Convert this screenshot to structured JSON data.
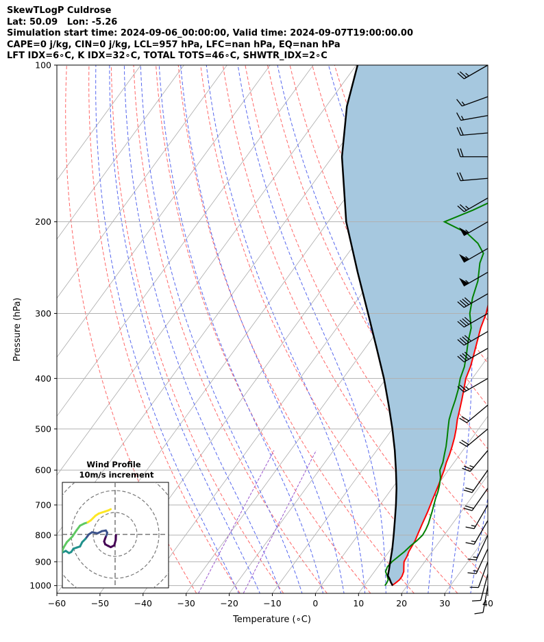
{
  "titles": {
    "line1": "SkewTLogP Culdrose",
    "line2": "Lat: 50.09   Lon: -5.26",
    "line3": "Simulation start time: 2024-09-06_00:00:00, Valid time: 2024-09-07T19:00:00.00",
    "line4": "CAPE=0 j/kg, CIN=0 j/kg, LCL=957 hPa, LFC=nan hPa, EQ=nan hPa",
    "line5": "LFT IDX=6∘C, K IDX=32∘C, TOTAL TOTS=46∘C, SHWTR_IDX=2∘C"
  },
  "chart_data": {
    "type": "line",
    "chart": "skew-t log-p",
    "xlabel": "Temperature (∘C)",
    "ylabel": "Pressure (hPa)",
    "xlim": [
      -60,
      40
    ],
    "ylim": [
      1035,
      100
    ],
    "x_ticks": [
      -60,
      -50,
      -40,
      -30,
      -20,
      -10,
      0,
      10,
      20,
      30,
      40
    ],
    "y_ticks": [
      100,
      200,
      300,
      400,
      500,
      600,
      700,
      800,
      900,
      1000
    ],
    "grid": true,
    "colors": {
      "temperature": "#ff0000",
      "dewpoint": "#008000",
      "parcel": "#000000",
      "shading": "#a6c8df",
      "dry_adiabats": "#ff6666",
      "moist_adiabats": "#5566ee",
      "mixing_ratio": "#9955cc",
      "isotherms": "#aaaaaa"
    },
    "temperature": {
      "pressure": [
        1000,
        990,
        975,
        960,
        940,
        920,
        900,
        880,
        860,
        840,
        820,
        800,
        780,
        760,
        740,
        720,
        700,
        680,
        660,
        640,
        620,
        600,
        580,
        560,
        540,
        520,
        500,
        480,
        460,
        440,
        420,
        400,
        380,
        360,
        340,
        320,
        300,
        280,
        260,
        250,
        240,
        230,
        220,
        200,
        190,
        180,
        170,
        160,
        150,
        140,
        130,
        125,
        120,
        115,
        110,
        100
      ],
      "values": [
        16.4,
        16.8,
        17.2,
        17.2,
        16.8,
        16.0,
        15.2,
        15.0,
        14.6,
        14.4,
        14.2,
        13.8,
        13.4,
        13.0,
        12.6,
        12.2,
        11.7,
        11.2,
        10.7,
        10.2,
        9.6,
        9.0,
        8.2,
        7.6,
        6.8,
        5.9,
        4.8,
        3.5,
        2.4,
        1.2,
        -0.1,
        -1.5,
        -2.4,
        -3.7,
        -5.1,
        -6.6,
        -7.8,
        -9.6,
        -11.6,
        -10.0,
        -5.8,
        -3.0,
        -1.0,
        -2.2,
        -1.8,
        -1.2,
        -0.6,
        -0.4,
        -0.8,
        -0.8,
        -0.6,
        0.4,
        1.6,
        2.2,
        2.8,
        4.2
      ]
    },
    "dewpoint": {
      "pressure": [
        1000,
        990,
        975,
        960,
        940,
        920,
        900,
        880,
        860,
        840,
        820,
        800,
        780,
        760,
        740,
        720,
        700,
        680,
        660,
        640,
        620,
        600,
        580,
        560,
        540,
        520,
        500,
        480,
        460,
        440,
        420,
        400,
        380,
        360,
        340,
        320,
        300,
        280,
        260,
        240,
        230,
        220,
        210,
        200,
        190,
        180,
        170,
        160,
        150,
        140,
        130,
        120,
        110,
        100
      ],
      "values": [
        14.8,
        14.8,
        14.6,
        13.8,
        12.6,
        12.2,
        12.4,
        13.0,
        13.6,
        14.0,
        14.6,
        15.0,
        14.8,
        14.4,
        13.8,
        13.2,
        12.5,
        11.8,
        11.2,
        10.4,
        9.4,
        8.0,
        7.4,
        6.4,
        5.4,
        4.2,
        2.9,
        1.6,
        0.6,
        -0.3,
        -1.4,
        -2.8,
        -3.8,
        -5.4,
        -7.2,
        -8.8,
        -11.6,
        -13.6,
        -15.2,
        -17.8,
        -18.6,
        -21.6,
        -26.0,
        -33.0,
        -28.4,
        -24.4,
        -22.0,
        -20.4,
        -18.2,
        -15.2,
        -12.2,
        -9.0,
        -6.6,
        -4.0
      ]
    },
    "parcel": {
      "pressure": [
        1000,
        985,
        970,
        957,
        930,
        900,
        850,
        800,
        750,
        700,
        650,
        600,
        550,
        500,
        450,
        400,
        350,
        300,
        250,
        200,
        150,
        120,
        100
      ],
      "values": [
        16.6,
        15.6,
        14.7,
        13.8,
        13.0,
        12.0,
        10.3,
        8.3,
        6.1,
        3.7,
        1.0,
        -2.2,
        -5.8,
        -10.0,
        -14.9,
        -20.5,
        -27.3,
        -35.2,
        -44.6,
        -55.8,
        -67.8,
        -75.2,
        -79.7
      ]
    },
    "wind_barbs": {
      "pressure": [
        100,
        115,
        125,
        135,
        150,
        165,
        180,
        200,
        225,
        250,
        275,
        300,
        325,
        350,
        400,
        450,
        500,
        550,
        600,
        650,
        700,
        750,
        800,
        850,
        900,
        950,
        1000
      ],
      "speed_kt": [
        25,
        15,
        15,
        20,
        20,
        20,
        25,
        55,
        55,
        55,
        40,
        40,
        40,
        40,
        25,
        20,
        20,
        25,
        20,
        20,
        15,
        15,
        15,
        15,
        10,
        10,
        10
      ],
      "direction_deg": [
        240,
        250,
        260,
        265,
        270,
        265,
        240,
        240,
        240,
        240,
        240,
        240,
        240,
        240,
        240,
        230,
        230,
        220,
        215,
        215,
        210,
        210,
        205,
        205,
        200,
        195,
        190
      ]
    },
    "hodograph": {
      "title": "Wind Profile",
      "subtitle": "10m/s increment",
      "ring_interval_ms": 10,
      "u": [
        0.4,
        0.3,
        -0.4,
        -2.0,
        -3.2,
        -4.5,
        -5.0,
        -4.6,
        -4.0,
        -3.6,
        -4.2,
        -6.0,
        -8.0,
        -10.5,
        -12.0,
        -13.5,
        -15.0,
        -16.0,
        -17.5,
        -19.0,
        -20.0,
        -21.0,
        -22.5,
        -24.5,
        -23.5,
        -22.0,
        -19.5,
        -17.5,
        -16.0,
        -14.0,
        -12.5,
        -11.0,
        -10.0,
        -9.0,
        -7.5,
        -6.0,
        -4.5,
        -3.0,
        -2.0
      ],
      "v": [
        -0.3,
        -2.5,
        -5.0,
        -5.8,
        -5.2,
        -4.5,
        -3.2,
        -2.0,
        -0.5,
        0.8,
        1.8,
        1.5,
        0.5,
        1.0,
        0.0,
        -2.0,
        -3.5,
        -5.5,
        -6.0,
        -6.5,
        -8.0,
        -8.5,
        -7.5,
        -8.5,
        -6.0,
        -3.5,
        -1.0,
        2.0,
        4.0,
        5.0,
        5.5,
        6.5,
        7.5,
        8.5,
        9.5,
        10.0,
        10.5,
        11.0,
        11.5
      ]
    }
  }
}
